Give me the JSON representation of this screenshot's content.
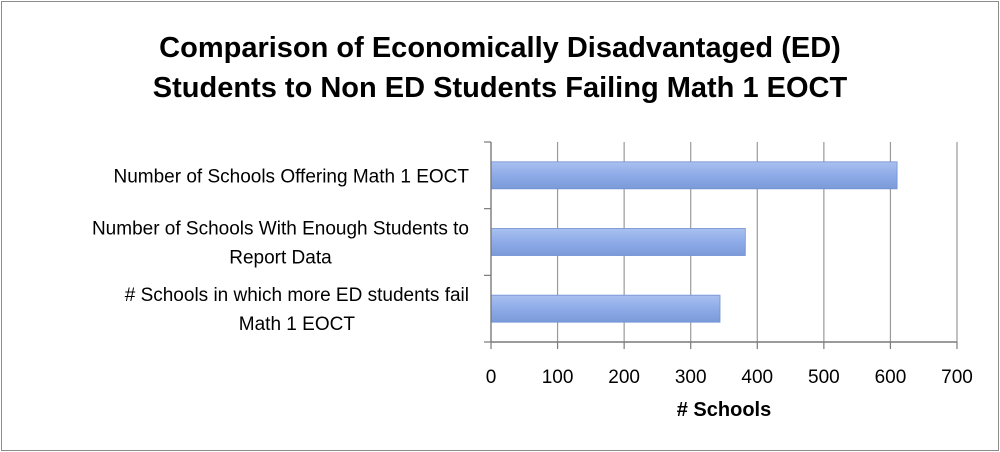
{
  "chart_data": {
    "type": "bar",
    "orientation": "horizontal",
    "title": [
      "Comparison of Economically Disadvantaged (ED)",
      "Students to Non ED Students Failing Math 1 EOCT"
    ],
    "xlabel": "# Schools",
    "ylabel": "",
    "xlim": [
      0,
      700
    ],
    "xticks": [
      "0",
      "100",
      "200",
      "300",
      "400",
      "500",
      "600",
      "700"
    ],
    "grid": "vertical",
    "legend": "none",
    "bar_color": "#8eabe8",
    "categories": [
      [
        "Number of Schools Offering Math 1 EOCT"
      ],
      [
        "Number of Schools With Enough Students to",
        "Report Data"
      ],
      [
        "# Schools in which more ED students fail",
        "Math 1 EOCT"
      ]
    ],
    "values": [
      610,
      382,
      344
    ]
  }
}
